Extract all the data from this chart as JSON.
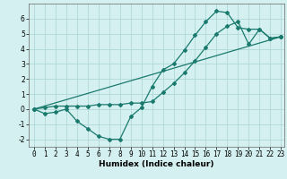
{
  "xlabel": "Humidex (Indice chaleur)",
  "ylabel": "",
  "background_color": "#d4f0f0",
  "grid_color": "#b0d8d8",
  "line_color": "#1a7a6e",
  "xlim": [
    -0.5,
    23.3
  ],
  "ylim": [
    -2.5,
    7.0
  ],
  "xticks": [
    0,
    1,
    2,
    3,
    4,
    5,
    6,
    7,
    8,
    9,
    10,
    11,
    12,
    13,
    14,
    15,
    16,
    17,
    18,
    19,
    20,
    21,
    22,
    23
  ],
  "yticks": [
    -2,
    -1,
    0,
    1,
    2,
    3,
    4,
    5,
    6
  ],
  "line1_x": [
    0,
    1,
    2,
    3,
    4,
    5,
    6,
    7,
    8,
    9,
    10,
    11,
    12,
    13,
    14,
    15,
    16,
    17,
    18,
    19,
    20,
    21,
    22,
    23
  ],
  "line1_y": [
    0,
    -0.3,
    -0.2,
    0.0,
    -0.8,
    -1.3,
    -1.8,
    -2.0,
    -2.0,
    -0.5,
    0.1,
    1.5,
    2.6,
    3.0,
    3.9,
    4.9,
    5.8,
    6.5,
    6.4,
    5.4,
    5.3,
    5.3,
    4.7,
    4.8
  ],
  "line2_x": [
    0,
    23
  ],
  "line2_y": [
    0,
    4.8
  ],
  "line3_x": [
    0,
    1,
    2,
    3,
    4,
    5,
    6,
    7,
    8,
    9,
    10,
    11,
    12,
    13,
    14,
    15,
    16,
    17,
    18,
    19,
    20,
    21,
    22,
    23
  ],
  "line3_y": [
    0,
    0.1,
    0.2,
    0.2,
    0.2,
    0.2,
    0.3,
    0.3,
    0.3,
    0.4,
    0.4,
    0.5,
    1.1,
    1.7,
    2.4,
    3.2,
    4.1,
    5.0,
    5.5,
    5.8,
    4.3,
    5.3,
    4.7,
    4.8
  ],
  "marker": "D",
  "markersize": 2.0,
  "linewidth": 0.9,
  "tick_fontsize": 5.5,
  "xlabel_fontsize": 6.5
}
